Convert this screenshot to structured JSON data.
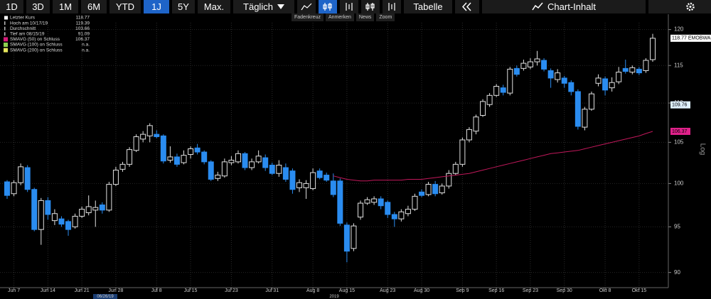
{
  "toolbar": {
    "ranges": [
      "1D",
      "3D",
      "1M",
      "6M",
      "YTD",
      "1J",
      "5Y",
      "Max."
    ],
    "selected": "1J",
    "interval": "Täglich",
    "table": "Tabelle",
    "content": "Chart-Inhalt",
    "tools": [
      "Fadenkreuz",
      "Anmerken",
      "News",
      "Zoom"
    ]
  },
  "chart_data": {
    "type": "candlestick",
    "legend": [
      {
        "label": "Letzter Kurs",
        "value": "118.77",
        "color": "#ffffff"
      },
      {
        "label": "Hoch am 10/17/19",
        "value": "119.39",
        "color": "#bbbbbb"
      },
      {
        "label": "Durchschnitt",
        "value": "103.66",
        "color": "#bbbbbb"
      },
      {
        "label": "Tief am 08/15/19",
        "value": "91.09",
        "color": "#bbbbbb"
      },
      {
        "label": "SMAVG (50)  on Schluss",
        "value": "106.37",
        "color": "#d81b7a"
      },
      {
        "label": "SMAVG (100)  on Schluss",
        "value": "n.a.",
        "color": "#8fd14f"
      },
      {
        "label": "SMAVG (200)  on Schluss",
        "value": "n.a.",
        "color": "#e6e65c"
      }
    ],
    "categories": [
      null,
      "Jun 7",
      null,
      null,
      null,
      null,
      "Jun 14",
      null,
      null,
      null,
      null,
      "Jun 21",
      null,
      null,
      null,
      null,
      "Jun 28",
      null,
      null,
      null,
      null,
      null,
      "Jul 8",
      null,
      null,
      null,
      null,
      "Jul 15",
      null,
      null,
      null,
      null,
      null,
      "Jul 23",
      null,
      null,
      null,
      null,
      null,
      "Jul 31",
      null,
      null,
      null,
      null,
      null,
      "Aug 8",
      null,
      null,
      null,
      null,
      "Aug 15",
      null,
      null,
      null,
      null,
      null,
      "Aug 23",
      null,
      null,
      null,
      null,
      "Aug 30",
      null,
      null,
      null,
      null,
      null,
      "Sep 9",
      null,
      null,
      null,
      null,
      "Sep 16",
      null,
      null,
      null,
      null,
      "Sep 23",
      null,
      null,
      null,
      null,
      "Sep 30",
      null,
      null,
      null,
      null,
      null,
      "Okt 8",
      null,
      null,
      null,
      null,
      "Okt 15",
      null,
      null
    ],
    "x_annotations": [
      "06/26/19",
      "2019"
    ],
    "ohlc": {
      "open": [
        100.2,
        98.8,
        100.1,
        101.9,
        99.3,
        94.7,
        98,
        95.7,
        95.9,
        95.6,
        95,
        96.2,
        96.6,
        96.9,
        97.5,
        96.9,
        99.9,
        101.7,
        102.3,
        104,
        105.4,
        105.8,
        106,
        105.8,
        102.8,
        103.2,
        102.5,
        103.5,
        104.3,
        103.8,
        102.6,
        100.6,
        100.9,
        102.5,
        102.6,
        103.6,
        101.9,
        102.6,
        103.1,
        102.2,
        101.2,
        101.9,
        101.5,
        99.5,
        99.5,
        99.4,
        101.5,
        101,
        100.3,
        100.3,
        95.2,
        92.6,
        96.1,
        97.7,
        97.8,
        98.2,
        97.8,
        96.4,
        95.9,
        96.5,
        97,
        99,
        98.7,
        99.9,
        98.9,
        99.7,
        101.2,
        102.3,
        105.3,
        106.4,
        108.4,
        109.8,
        111,
        112,
        111.3,
        114.6,
        114.6,
        114.8,
        115.5,
        115.7,
        114.3,
        113.1,
        113.3,
        112.7,
        111.5,
        106.9,
        109.2,
        112.6,
        113.2,
        112,
        112.8,
        114.6,
        114.1,
        114.5,
        114.3,
        115.8
      ],
      "high": [
        100.4,
        100.4,
        102.4,
        102.2,
        99.5,
        98.3,
        98.4,
        97,
        96.2,
        95.8,
        96.5,
        97.3,
        98.6,
        98,
        97.8,
        100.2,
        102,
        102.6,
        104.4,
        106,
        106.4,
        107.4,
        106.5,
        106,
        104.5,
        103.6,
        104,
        104.5,
        104.8,
        104,
        102.8,
        101.4,
        103,
        103.3,
        104,
        103.8,
        103,
        104,
        103.5,
        102.5,
        102.8,
        102.4,
        101.8,
        100.5,
        100.4,
        101.8,
        101.8,
        101.3,
        101.2,
        100.6,
        95.5,
        95.4,
        98,
        98.4,
        98.5,
        98.5,
        98,
        96.7,
        97,
        97.4,
        98.8,
        99.3,
        100.2,
        100.3,
        100,
        101.6,
        102.6,
        105.6,
        106.9,
        108.5,
        110.5,
        111.3,
        112.5,
        112.4,
        114.8,
        115,
        115.8,
        116,
        117,
        116,
        114.6,
        114.5,
        113.6,
        113,
        111.8,
        109.5,
        111.5,
        113.8,
        113.5,
        113.4,
        114.8,
        115.8,
        115,
        114.8,
        116,
        119.39
      ],
      "low": [
        98.2,
        98.5,
        99.8,
        99,
        94.5,
        93,
        95.8,
        95.2,
        95,
        94,
        94.8,
        96,
        96.3,
        95,
        96.5,
        96.7,
        99.7,
        101.4,
        102,
        103.8,
        105,
        105,
        105.5,
        102.4,
        102.5,
        102,
        102.3,
        103,
        103.5,
        102.3,
        100.3,
        100.3,
        100.7,
        102.2,
        102.4,
        101.6,
        101.6,
        102.4,
        101.5,
        101,
        100.8,
        100.2,
        98.8,
        99,
        98.2,
        99.2,
        100.5,
        100.2,
        98.4,
        95.1,
        91.09,
        92.3,
        95.8,
        97.5,
        97.5,
        97,
        96,
        95,
        95.6,
        96.2,
        96.8,
        98.4,
        98.5,
        98.5,
        98.7,
        99.4,
        101,
        102,
        105,
        106,
        108.2,
        109.5,
        110.8,
        111,
        111,
        113.5,
        114.3,
        114.5,
        115,
        114.2,
        112,
        112.7,
        112,
        111,
        106.6,
        106.5,
        109,
        112.2,
        111,
        111.5,
        112.5,
        113.9,
        113.8,
        113.7,
        114,
        115.5
      ],
      "close": [
        98.6,
        100.1,
        102,
        99.3,
        94.7,
        98,
        96.4,
        96.5,
        95.3,
        94.7,
        96.2,
        97,
        97.3,
        97.2,
        96.9,
        99.9,
        101.6,
        102.3,
        104.1,
        105.7,
        106,
        107.1,
        105.7,
        102.7,
        103.2,
        102.3,
        103.4,
        104.2,
        103.8,
        102.6,
        100.5,
        101,
        102.6,
        102.8,
        103.6,
        101.9,
        102.6,
        103.3,
        101.9,
        101.2,
        102.2,
        100.5,
        99.3,
        100.1,
        100,
        101.3,
        100.7,
        100.4,
        98.7,
        95.4,
        92.3,
        95.1,
        97.7,
        98.1,
        98.2,
        97.4,
        96.4,
        95.9,
        96.7,
        97,
        98.5,
        98.6,
        99.9,
        98.8,
        99.7,
        101.2,
        102.3,
        105.3,
        106.6,
        108.2,
        110.2,
        111,
        112.2,
        111.4,
        114.5,
        113.8,
        115.3,
        115.5,
        115.9,
        114.5,
        113.3,
        114,
        112.6,
        111.5,
        107,
        109.2,
        111.2,
        113.3,
        111.7,
        112.7,
        114.1,
        114.2,
        114.7,
        114,
        115.7,
        118.77
      ]
    },
    "up_color": "#e0e0e0",
    "down_color": "#2a8cf0",
    "sma": {
      "color": "#c2185b",
      "values": [
        null,
        null,
        null,
        null,
        null,
        null,
        null,
        null,
        null,
        null,
        null,
        null,
        null,
        null,
        null,
        null,
        null,
        null,
        null,
        null,
        null,
        null,
        null,
        null,
        null,
        null,
        null,
        null,
        null,
        null,
        null,
        null,
        null,
        null,
        null,
        null,
        null,
        null,
        null,
        null,
        null,
        null,
        null,
        null,
        null,
        null,
        null,
        null,
        100.9,
        100.7,
        100.5,
        100.4,
        100.3,
        100.3,
        100.4,
        100.4,
        100.4,
        100.4,
        100.4,
        100.5,
        100.5,
        100.5,
        100.6,
        100.7,
        100.8,
        100.9,
        101,
        101.1,
        101.2,
        101.4,
        101.6,
        101.8,
        102,
        102.2,
        102.4,
        102.6,
        102.8,
        103,
        103.2,
        103.4,
        103.6,
        103.7,
        103.8,
        103.9,
        104,
        104.2,
        104.4,
        104.6,
        104.8,
        105,
        105.2,
        105.4,
        105.6,
        105.8,
        106.1,
        106.37
      ]
    },
    "price_labels": [
      {
        "label": "118.77 EMOBWAS",
        "value": 118.77,
        "color": "#ffffff",
        "text_color": "#000000"
      },
      {
        "label": "109.76",
        "value": 109.76,
        "color": "#dff1ff",
        "text_color": "#000000"
      },
      {
        "label": "106.37",
        "value": 106.37,
        "color": "#e0218a",
        "text_color": "#000000"
      }
    ],
    "y_label": "Log",
    "log_scale": true,
    "grid": true,
    "ylim": [
      88.4,
      122.2
    ],
    "yticks": [
      90,
      95,
      100,
      105,
      110,
      115,
      120
    ]
  }
}
